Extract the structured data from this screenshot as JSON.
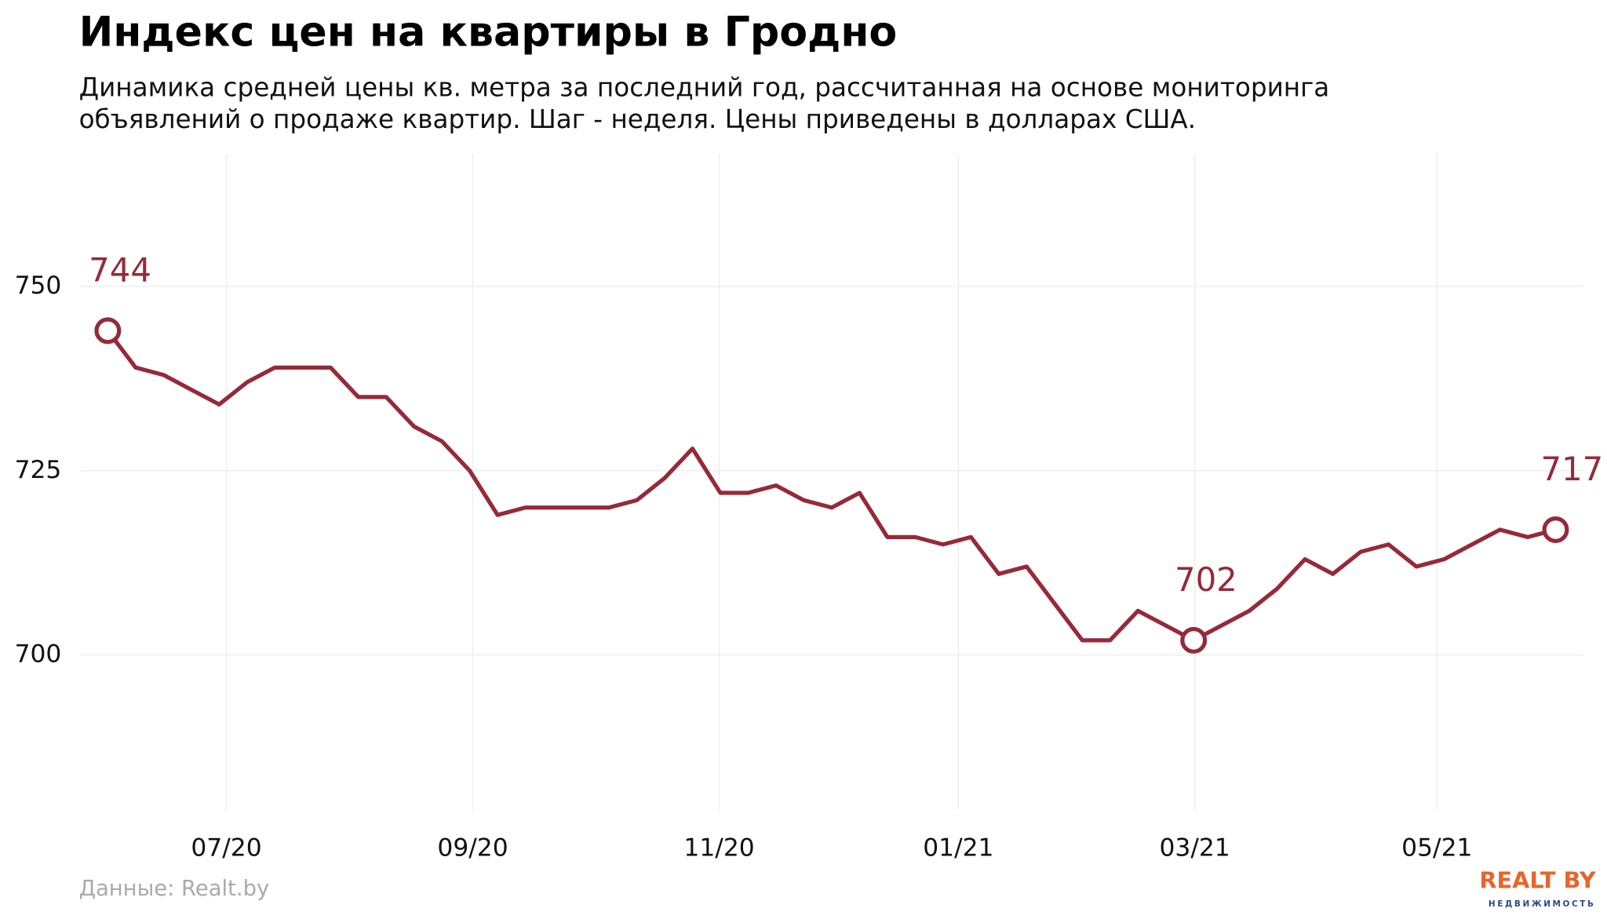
{
  "chart_data": {
    "type": "line",
    "title": "Индекс цен на квартиры в Гродно",
    "subtitle": [
      "Динамика средней цены кв. метра за последний год, рассчитанная на основе мониторинга",
      "объявлений о продаже квартир. Шаг - неделя. Цены приведены в долларах США."
    ],
    "source": "Данные: Realt.by",
    "logo": {
      "text": "REALT BY",
      "subtext": "НЕДВИЖИМОСТЬ"
    },
    "x": [
      0,
      1,
      2,
      3,
      4,
      5,
      6,
      7,
      8,
      9,
      10,
      11,
      12,
      13,
      14,
      15,
      16,
      17,
      18,
      19,
      20,
      21,
      22,
      23,
      24,
      25,
      26,
      27,
      28,
      29,
      30,
      31,
      32,
      33,
      34,
      35,
      36,
      37,
      38,
      39,
      40,
      41,
      42,
      43,
      44,
      45,
      46,
      47,
      48,
      49,
      50,
      51,
      52
    ],
    "series": [
      {
        "color": "#962a38",
        "values": [
          744,
          739,
          738,
          736,
          734,
          737,
          739,
          739,
          739,
          735,
          735,
          731,
          729,
          725,
          719,
          720,
          720,
          720,
          720,
          721,
          724,
          728,
          722,
          722,
          723,
          721,
          720,
          722,
          716,
          716,
          715,
          716,
          711,
          712,
          707,
          702,
          702,
          706,
          704,
          702,
          704,
          706,
          709,
          713,
          711,
          714,
          715,
          712,
          713,
          715,
          717,
          716,
          717
        ]
      }
    ],
    "labeled_points": [
      0,
      39,
      52
    ],
    "xlim": [
      -1,
      53
    ],
    "xticks": [
      {
        "value": 4.26,
        "label": "07/20"
      },
      {
        "value": 13.11,
        "label": "09/20"
      },
      {
        "value": 21.96,
        "label": "11/20"
      },
      {
        "value": 30.55,
        "label": "01/21"
      },
      {
        "value": 39.04,
        "label": "03/21"
      },
      {
        "value": 47.74,
        "label": "05/21"
      }
    ],
    "ylim": [
      679,
      768
    ],
    "yticks": [
      700,
      725,
      750
    ],
    "grid": true
  }
}
